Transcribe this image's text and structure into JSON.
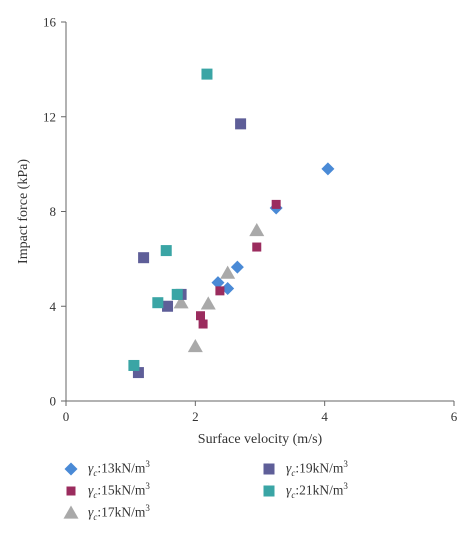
{
  "chart_data": {
    "type": "scatter",
    "xlabel": "Surface velocity (m/s)",
    "ylabel": "Impact force (kPa)",
    "xlim": [
      0,
      6
    ],
    "ylim": [
      0,
      16
    ],
    "xticks": [
      "0",
      "2",
      "4",
      "6"
    ],
    "yticks": [
      "0",
      "4",
      "8",
      "12",
      "16"
    ],
    "grid": false,
    "legend_position": "bottom",
    "series": [
      {
        "name": "γc:13kN/m3",
        "legend_symbol": "γ",
        "legend_sub": "c",
        "legend_text": ":13kN/m",
        "legend_sup": "3",
        "marker": "diamond",
        "color": "#4a8ad6",
        "points": [
          [
            2.35,
            5.0
          ],
          [
            2.5,
            4.75
          ],
          [
            2.65,
            5.65
          ],
          [
            3.25,
            8.15
          ],
          [
            4.05,
            9.8
          ]
        ]
      },
      {
        "name": "γc:15kN/m3",
        "legend_symbol": "γ",
        "legend_sub": "c",
        "legend_text": ":15kN/m",
        "legend_sup": "3",
        "marker": "square-small",
        "color": "#9b2c5e",
        "points": [
          [
            2.08,
            3.6
          ],
          [
            2.12,
            3.25
          ],
          [
            2.38,
            4.65
          ],
          [
            2.95,
            6.5
          ],
          [
            3.25,
            8.3
          ]
        ]
      },
      {
        "name": "γc:17kN/m3",
        "legend_symbol": "γ",
        "legend_sub": "c",
        "legend_text": ":17kN/m",
        "legend_sup": "3",
        "marker": "triangle",
        "color": "#a9a9a9",
        "points": [
          [
            2.0,
            2.3
          ],
          [
            1.78,
            4.15
          ],
          [
            2.2,
            4.1
          ],
          [
            2.5,
            5.4
          ],
          [
            2.95,
            7.2
          ]
        ]
      },
      {
        "name": "γc:19kN/m3",
        "legend_symbol": "γ",
        "legend_sub": "c",
        "legend_text": ":19kN/m",
        "legend_sup": "3",
        "marker": "square",
        "color": "#5e5e98",
        "points": [
          [
            1.12,
            1.2
          ],
          [
            1.2,
            6.05
          ],
          [
            1.57,
            4.0
          ],
          [
            1.78,
            4.5
          ],
          [
            2.7,
            11.7
          ]
        ]
      },
      {
        "name": "γc:21kN/m3",
        "legend_symbol": "γ",
        "legend_sub": "c",
        "legend_text": ":21kN/m",
        "legend_sup": "3",
        "marker": "square",
        "color": "#3aa5a5",
        "points": [
          [
            1.05,
            1.5
          ],
          [
            1.42,
            4.15
          ],
          [
            1.55,
            6.35
          ],
          [
            1.72,
            4.5
          ],
          [
            2.18,
            13.8
          ]
        ]
      }
    ]
  }
}
